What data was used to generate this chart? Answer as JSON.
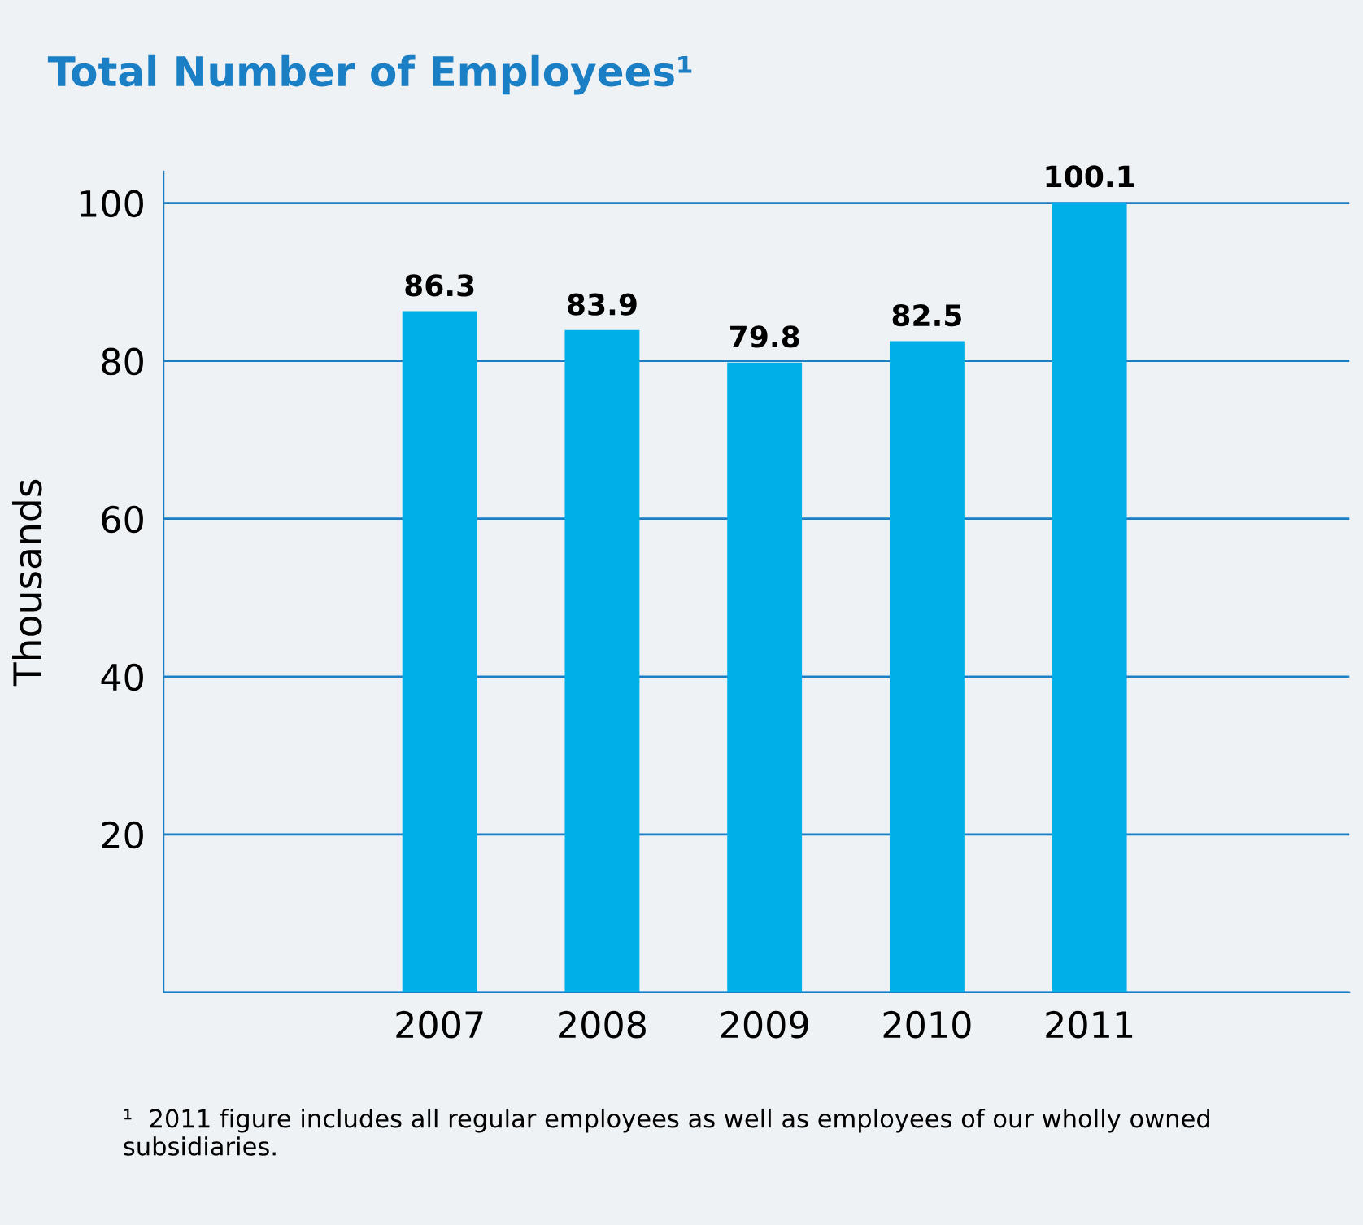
{
  "chart_data": {
    "type": "bar",
    "title": "Total Number of Employees¹",
    "ylabel": "Thousands",
    "categories": [
      "2007",
      "2008",
      "2009",
      "2010",
      "2011"
    ],
    "values": [
      86.3,
      83.9,
      79.8,
      82.5,
      100.1
    ],
    "color": "#00aee8",
    "ylim": [
      0,
      104
    ],
    "yticks": [
      {
        "value": 0,
        "label": null
      },
      20,
      40,
      60,
      80,
      100
    ],
    "grid": "y",
    "data_labels": true,
    "annotations": [
      "¹  2011 figure includes all regular employees as well as employees of our wholly owned subsidiaries."
    ]
  }
}
